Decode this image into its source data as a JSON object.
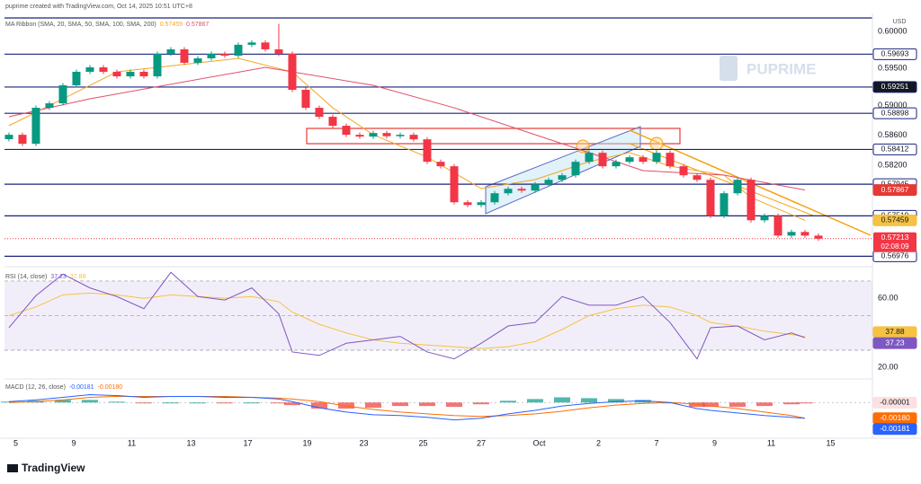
{
  "chart_data": {
    "type": "candlestick",
    "header": "puprime created with TradingView.com, Oct 14, 2025 10:51 UTC+8",
    "currency": "USD",
    "watermark": "PUPRIME",
    "logo": "TradingView",
    "ma_legend": "MA Ribbon (SMA, 20, SMA, 50, SMA, 100, SMA, 200)",
    "xlim": [
      -0.33,
      64
    ],
    "xticks": [
      {
        "value": 0.5,
        "label": "5"
      },
      {
        "value": 4.8,
        "label": "9"
      },
      {
        "value": 9.1,
        "label": "11"
      },
      {
        "value": 13.5,
        "label": "13"
      },
      {
        "value": 17.7,
        "label": "17"
      },
      {
        "value": 22.1,
        "label": "19"
      },
      {
        "value": 26.3,
        "label": "23"
      },
      {
        "value": 30.7,
        "label": "25"
      },
      {
        "value": 35,
        "label": "27"
      },
      {
        "value": 39.3,
        "label": "Oct"
      },
      {
        "value": 43.7,
        "label": "2"
      },
      {
        "value": 48,
        "label": "7"
      },
      {
        "value": 52.3,
        "label": "9"
      },
      {
        "value": 56.5,
        "label": "11"
      },
      {
        "value": 60.9,
        "label": "15"
      }
    ],
    "ylim": [
      0.5686,
      0.6024
    ],
    "yticks": [
      {
        "value": 0.6,
        "label": "0.60000"
      },
      {
        "value": 0.595,
        "label": "0.59500"
      },
      {
        "value": 0.59,
        "label": "0.59000"
      },
      {
        "value": 0.586,
        "label": "0.58600"
      },
      {
        "value": 0.582,
        "label": "0.58200"
      }
    ],
    "levels": [
      0.59693,
      0.59251,
      0.58898,
      0.58412,
      0.57945,
      0.57519,
      0.56976
    ],
    "up_color": "#089981",
    "down_color": "#f23645",
    "candles": {
      "open": [
        0.5855,
        0.58609,
        0.58488,
        0.58972,
        0.59032,
        0.59274,
        0.59456,
        0.59516,
        0.59456,
        0.59395,
        0.59456,
        0.59395,
        0.59698,
        0.59758,
        0.59577,
        0.59637,
        0.59698,
        0.59673,
        0.59819,
        0.5985,
        0.59758,
        0.59698,
        0.59214,
        0.58972,
        0.58851,
        0.5873,
        0.58609,
        0.58585,
        0.58633,
        0.5859,
        0.58609,
        0.58548,
        0.58246,
        0.58186,
        0.57702,
        0.57665,
        0.57702,
        0.57823,
        0.57883,
        0.57859,
        0.57944,
        0.58004,
        0.58065,
        0.58246,
        0.58367,
        0.58186,
        0.58246,
        0.58307,
        0.58246,
        0.58367,
        0.58186,
        0.58065,
        0.58004,
        0.5752,
        0.57823,
        0.58004,
        0.5746,
        0.5752,
        0.57254,
        0.57303,
        0.57254
      ],
      "high": [
        0.58639,
        0.58639,
        0.59002,
        0.59062,
        0.59304,
        0.59486,
        0.59546,
        0.59546,
        0.59486,
        0.59486,
        0.59486,
        0.59728,
        0.59788,
        0.59788,
        0.59667,
        0.59728,
        0.59728,
        0.59849,
        0.5988,
        0.5988,
        0.601,
        0.59728,
        0.59244,
        0.59002,
        0.58881,
        0.5876,
        0.58639,
        0.58663,
        0.58663,
        0.58639,
        0.58639,
        0.58578,
        0.58276,
        0.58216,
        0.57732,
        0.57732,
        0.57853,
        0.57913,
        0.57913,
        0.57974,
        0.58034,
        0.58095,
        0.58276,
        0.58397,
        0.58397,
        0.58276,
        0.58337,
        0.58337,
        0.58397,
        0.58397,
        0.58216,
        0.58095,
        0.58034,
        0.57853,
        0.58034,
        0.58034,
        0.5755,
        0.5755,
        0.57333,
        0.57333,
        0.57284
      ],
      "low": [
        0.5852,
        0.58458,
        0.58458,
        0.58942,
        0.59002,
        0.59244,
        0.59426,
        0.59426,
        0.59365,
        0.59365,
        0.59365,
        0.59365,
        0.59668,
        0.59547,
        0.59547,
        0.59607,
        0.59643,
        0.59643,
        0.59789,
        0.59728,
        0.59668,
        0.59184,
        0.58942,
        0.58821,
        0.587,
        0.58579,
        0.58555,
        0.58555,
        0.5856,
        0.5856,
        0.58518,
        0.58216,
        0.58156,
        0.57672,
        0.57635,
        0.57635,
        0.57672,
        0.57793,
        0.57829,
        0.57829,
        0.57914,
        0.57974,
        0.58035,
        0.58216,
        0.58156,
        0.58156,
        0.58216,
        0.58216,
        0.58216,
        0.58156,
        0.58035,
        0.57974,
        0.5749,
        0.5749,
        0.57793,
        0.5743,
        0.5743,
        0.57224,
        0.57224,
        0.57224,
        0.57183
      ],
      "close": [
        0.58609,
        0.58488,
        0.58972,
        0.59032,
        0.59274,
        0.59456,
        0.59516,
        0.59456,
        0.59395,
        0.59456,
        0.59395,
        0.59698,
        0.59758,
        0.59577,
        0.59637,
        0.59698,
        0.59673,
        0.59819,
        0.5985,
        0.59758,
        0.59698,
        0.59214,
        0.58972,
        0.58851,
        0.5873,
        0.58609,
        0.58585,
        0.58633,
        0.5859,
        0.58609,
        0.58548,
        0.58246,
        0.58186,
        0.57702,
        0.57665,
        0.57702,
        0.57823,
        0.57883,
        0.57859,
        0.57944,
        0.58004,
        0.58065,
        0.58246,
        0.58367,
        0.58186,
        0.58246,
        0.58307,
        0.58246,
        0.58367,
        0.58186,
        0.58065,
        0.58004,
        0.5752,
        0.57823,
        0.58004,
        0.5746,
        0.5752,
        0.57254,
        0.57303,
        0.57254,
        0.57213
      ]
    },
    "countdown": "02:08:09",
    "ma": [
      {
        "color": "#f5a623",
        "x": [
          0,
          8,
          17,
          21,
          24,
          27,
          31,
          35,
          39,
          43,
          46,
          49,
          53,
          55,
          59
        ],
        "values": [
          0.58731,
          0.59455,
          0.59636,
          0.59455,
          0.58972,
          0.5861,
          0.58309,
          0.57886,
          0.58007,
          0.58248,
          0.58369,
          0.58188,
          0.58067,
          0.57766,
          0.57459
        ]
      },
      {
        "color": "#e04f6a",
        "x": [
          0,
          6,
          19,
          27,
          33,
          41,
          47,
          53,
          59
        ],
        "values": [
          0.58852,
          0.59093,
          0.59516,
          0.59274,
          0.58972,
          0.5849,
          0.58128,
          0.58067,
          0.57867
        ]
      }
    ],
    "rsi": {
      "legend": "RSI (14, close)",
      "ylim": [
        13.4,
        76.7
      ],
      "yticks": [
        {
          "value": 60,
          "label": "60.00"
        },
        {
          "value": 20,
          "label": "20.00"
        }
      ],
      "levels": [
        70,
        50,
        30
      ],
      "color": "#7e57c2",
      "ma_color": "#f5c242",
      "x": [
        0,
        2,
        4,
        6,
        8,
        10,
        12,
        14,
        16,
        18,
        20,
        21,
        23,
        25,
        27,
        29,
        31,
        33,
        35,
        37,
        39,
        41,
        43,
        45,
        47,
        49,
        51,
        52,
        54,
        56,
        58,
        59
      ],
      "values": [
        43,
        61.5,
        74,
        66,
        61,
        54,
        75,
        61,
        59,
        66,
        51,
        29,
        27,
        34,
        36,
        38,
        29,
        25,
        34,
        44,
        46,
        61,
        56,
        56,
        61,
        46,
        25,
        43,
        44,
        36,
        40,
        37.23
      ],
      "ma": [
        50,
        55,
        62,
        63,
        62,
        60,
        62,
        61,
        60,
        61,
        58,
        52,
        45,
        40,
        36,
        34,
        33,
        32,
        31,
        32,
        35,
        42,
        50,
        54,
        56,
        55,
        50,
        46,
        44,
        41,
        39,
        37.88
      ]
    },
    "macd": {
      "legend": "MACD (12, 26, close)",
      "ylim": [
        -0.0041,
        0.0024
      ],
      "color": "#2962ff",
      "signal_color": "#ff6d00",
      "x": [
        0,
        2,
        4,
        6,
        8,
        10,
        12,
        14,
        16,
        18,
        20,
        21,
        23,
        25,
        27,
        29,
        31,
        33,
        35,
        37,
        39,
        41,
        43,
        45,
        47,
        49,
        51,
        52,
        54,
        56,
        58,
        59
      ],
      "values": [
        0.0001,
        0.0003,
        0.0006,
        0.0009,
        0.0008,
        0.0006,
        0.0007,
        0.0007,
        0.0006,
        0.0006,
        0.0004,
        0.0001,
        -0.0006,
        -0.0011,
        -0.0014,
        -0.0015,
        -0.0017,
        -0.002,
        -0.0018,
        -0.0013,
        -0.0009,
        -0.0004,
        -0.0001,
        0.0001,
        0.0002,
        0,
        -0.0007,
        -0.0009,
        -0.0012,
        -0.0015,
        -0.0017,
        -0.00181
      ],
      "signal": [
        0,
        0.0001,
        0.0003,
        0.0006,
        0.0007,
        0.0007,
        0.0007,
        0.0007,
        0.0007,
        0.0006,
        0.0005,
        0.0004,
        0.0001,
        -0.0004,
        -0.0008,
        -0.0011,
        -0.0013,
        -0.0015,
        -0.0016,
        -0.0015,
        -0.0013,
        -0.001,
        -0.0006,
        -0.0003,
        -0.0001,
        0,
        -0.0002,
        -0.0004,
        -0.0007,
        -0.0011,
        -0.0015,
        -0.0018
      ],
      "signal_label": "-0.00180",
      "histogram": [
        0.0001,
        0.0002,
        0.0003,
        0.0003,
        0.0001,
        -0.0001,
        0,
        0,
        -0.0001,
        0,
        -0.0001,
        -0.0003,
        -0.0007,
        -0.0007,
        -0.0006,
        -0.0004,
        -0.0004,
        -0.0005,
        -0.0002,
        0.0002,
        0.0004,
        0.0006,
        0.0005,
        0.0004,
        0.0003,
        0,
        -0.0005,
        -0.0005,
        -0.0005,
        -0.0004,
        -0.0002,
        -1e-05
      ]
    }
  }
}
